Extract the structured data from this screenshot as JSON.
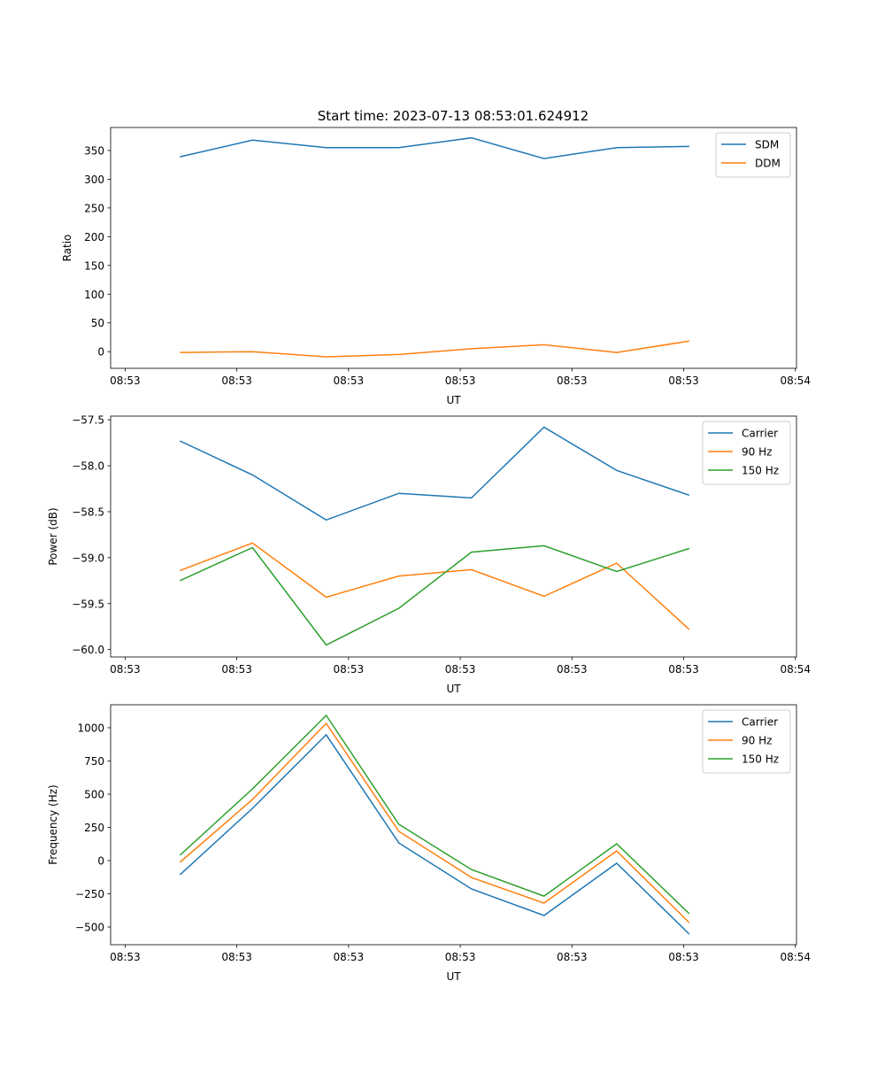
{
  "title": "Start time: 2023-07-13 08:53:01.624912",
  "colors": {
    "blue": "#1f77b4",
    "orange": "#ff7f0e",
    "green": "#2ca02c"
  },
  "chart_data": [
    {
      "type": "line",
      "xlabel": "UT",
      "ylabel": "Ratio",
      "x_units": "seconds after 08:53:00",
      "xlim": [
        -1.3,
        60.1
      ],
      "ylim": [
        -29,
        390
      ],
      "xticks": [
        0,
        10,
        20,
        30,
        40,
        50,
        60
      ],
      "xtick_labels": [
        "08:53",
        "08:53",
        "08:53",
        "08:53",
        "08:53",
        "08:53",
        "08:54"
      ],
      "yticks": [
        0,
        50,
        100,
        150,
        200,
        250,
        300,
        350
      ],
      "ytick_labels": [
        "0",
        "50",
        "100",
        "150",
        "200",
        "250",
        "300",
        "350"
      ],
      "legend": "top-right",
      "x": [
        4.9,
        11.4,
        18.0,
        24.5,
        31.0,
        37.5,
        44.0,
        50.5
      ],
      "series": [
        {
          "name": "SDM",
          "color": "#1f77b4",
          "values": [
            339,
            368,
            355,
            355,
            372,
            336,
            355,
            357
          ]
        },
        {
          "name": "DDM",
          "color": "#ff7f0e",
          "values": [
            -1.5,
            0,
            -9,
            -5,
            5,
            12,
            -1.5,
            18.5
          ]
        }
      ]
    },
    {
      "type": "line",
      "xlabel": "UT",
      "ylabel": "Power (dB)",
      "x_units": "seconds after 08:53:00",
      "xlim": [
        -1.3,
        60.1
      ],
      "ylim": [
        -60.08,
        -57.46
      ],
      "xticks": [
        0,
        10,
        20,
        30,
        40,
        50,
        60
      ],
      "xtick_labels": [
        "08:53",
        "08:53",
        "08:53",
        "08:53",
        "08:53",
        "08:53",
        "08:54"
      ],
      "yticks": [
        -60.0,
        -59.5,
        -59.0,
        -58.5,
        -58.0,
        -57.5
      ],
      "ytick_labels": [
        "−60.0",
        "−59.5",
        "−59.0",
        "−58.5",
        "−58.0",
        "−57.5"
      ],
      "legend": "top-right",
      "x": [
        4.9,
        11.4,
        18.0,
        24.5,
        31.0,
        37.5,
        44.0,
        50.5
      ],
      "series": [
        {
          "name": "Carrier",
          "color": "#1f77b4",
          "values": [
            -57.73,
            -58.1,
            -58.59,
            -58.3,
            -58.35,
            -57.58,
            -58.05,
            -58.32
          ]
        },
        {
          "name": "90 Hz",
          "color": "#ff7f0e",
          "values": [
            -59.14,
            -58.84,
            -59.43,
            -59.2,
            -59.13,
            -59.42,
            -59.06,
            -59.78
          ]
        },
        {
          "name": "150 Hz",
          "color": "#2ca02c",
          "values": [
            -59.25,
            -58.89,
            -59.95,
            -59.55,
            -58.94,
            -58.87,
            -59.15,
            -58.9
          ]
        }
      ]
    },
    {
      "type": "line",
      "xlabel": "UT",
      "ylabel": "Frequency (Hz)",
      "x_units": "seconds after 08:53:00",
      "xlim": [
        -1.3,
        60.1
      ],
      "ylim": [
        -633,
        1173
      ],
      "xticks": [
        0,
        10,
        20,
        30,
        40,
        50,
        60
      ],
      "xtick_labels": [
        "08:53",
        "08:53",
        "08:53",
        "08:53",
        "08:53",
        "08:53",
        "08:54"
      ],
      "yticks": [
        -500,
        -250,
        0,
        250,
        500,
        750,
        1000
      ],
      "ytick_labels": [
        "−500",
        "−250",
        "0",
        "250",
        "500",
        "750",
        "1000"
      ],
      "legend": "top-right",
      "x": [
        4.9,
        11.4,
        18.0,
        24.5,
        31.0,
        37.5,
        44.0,
        50.5
      ],
      "series": [
        {
          "name": "Carrier",
          "color": "#1f77b4",
          "values": [
            -107,
            393,
            947,
            133,
            -213,
            -413,
            -20,
            -553
          ]
        },
        {
          "name": "90 Hz",
          "color": "#ff7f0e",
          "values": [
            -13,
            460,
            1033,
            220,
            -127,
            -320,
            73,
            -467
          ]
        },
        {
          "name": "150 Hz",
          "color": "#2ca02c",
          "values": [
            40,
            540,
            1093,
            273,
            -67,
            -267,
            127,
            -400
          ]
        }
      ]
    }
  ]
}
